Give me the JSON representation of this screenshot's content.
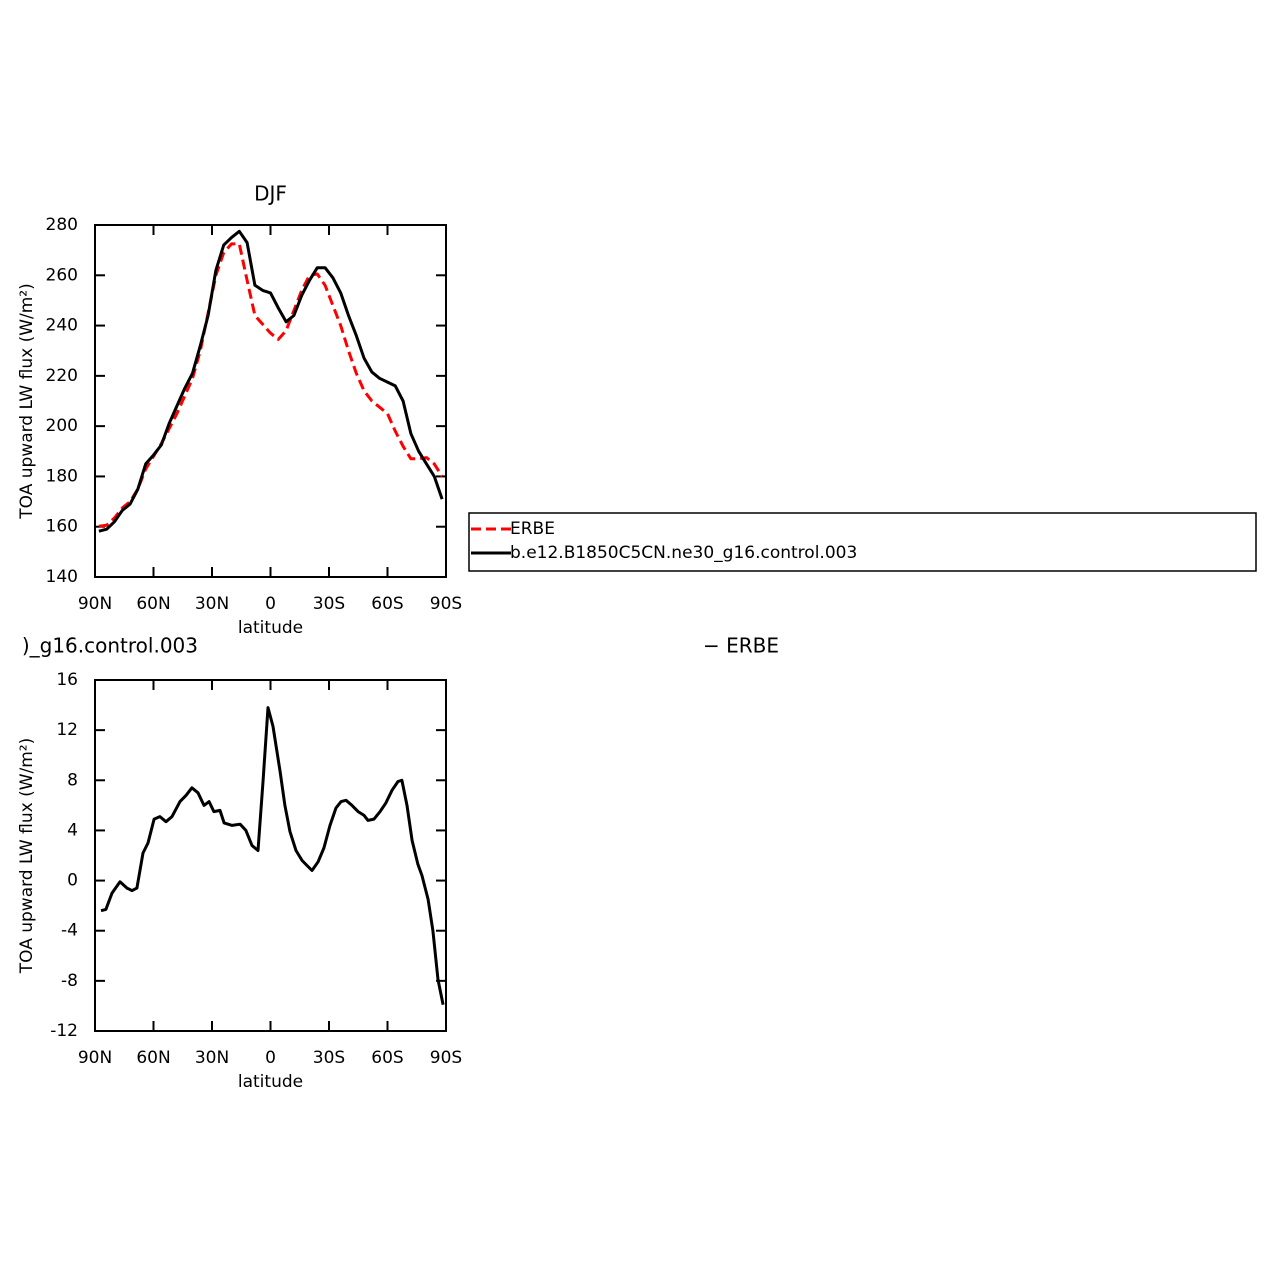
{
  "chart_data": [
    {
      "type": "line",
      "title": "DJF",
      "xlabel": "latitude",
      "ylabel": "TOA upward LW flux (W/m²)",
      "x": [
        88,
        84,
        80,
        76,
        72,
        68,
        64,
        60,
        56,
        52,
        48,
        44,
        40,
        36,
        32,
        28,
        24,
        20,
        16,
        12,
        8,
        4,
        0,
        -4,
        -8,
        -12,
        -16,
        -20,
        -24,
        -28,
        -32,
        -36,
        -40,
        -44,
        -48,
        -52,
        -56,
        -60,
        -64,
        -68,
        -72,
        -76,
        -80,
        -84,
        -88
      ],
      "series": [
        {
          "name": "ERBE",
          "color": "#ff0000",
          "dashed": true,
          "values": [
            160.2,
            160.6,
            163.5,
            167.5,
            170,
            175,
            183,
            188,
            193,
            199,
            205,
            212,
            219,
            230,
            245,
            260,
            269,
            272.5,
            272.5,
            258,
            244,
            240.5,
            237,
            234.5,
            238,
            246,
            254,
            260,
            260.5,
            256,
            248,
            240,
            230,
            221,
            214,
            210,
            207.5,
            205,
            198,
            192,
            187,
            187,
            187.5,
            185,
            180
          ]
        },
        {
          "name": "b.e12.B1850C5CN.ne30_g16.control.003",
          "color": "#000000",
          "dashed": false,
          "values": [
            158.2,
            159,
            162,
            166.5,
            169,
            175,
            185,
            188.5,
            192.5,
            201,
            208,
            215,
            221,
            232,
            244,
            262,
            272,
            275,
            277.5,
            273,
            256,
            254,
            253,
            247,
            241.5,
            244,
            252,
            258,
            263,
            263,
            259,
            253,
            244,
            236,
            227,
            221.5,
            219,
            217.5,
            216,
            210,
            197,
            190,
            185,
            180,
            171
          ]
        }
      ],
      "xlim": [
        90,
        -90
      ],
      "xticks": [
        {
          "value": 90,
          "label": "90N"
        },
        {
          "value": 60,
          "label": "60N"
        },
        {
          "value": 30,
          "label": "30N"
        },
        0,
        {
          "value": -30,
          "label": "30S"
        },
        {
          "value": -60,
          "label": "60S"
        },
        {
          "value": -90,
          "label": "90S"
        }
      ],
      "ylim": [
        140,
        280
      ],
      "yticks": [
        140,
        160,
        180,
        200,
        220,
        240,
        260,
        280
      ],
      "legend": true
    },
    {
      "type": "line",
      "title": ")_g16.control.003",
      "title_right": "− ERBE",
      "xlabel": "latitude",
      "ylabel": "TOA upward LW flux (W/m²)",
      "x": [
        86.9,
        84.4,
        81.3,
        77.2,
        73.6,
        71.0,
        68.5,
        65.4,
        62.8,
        59.7,
        56.7,
        53.6,
        50.5,
        46.4,
        43.3,
        40.3,
        37.2,
        34.1,
        31.5,
        29.0,
        25.9,
        23.8,
        19.7,
        15.6,
        12.6,
        9.5,
        6.4,
        3.8,
        1.3,
        -1.3,
        -4.9,
        -7.4,
        -10.0,
        -13.1,
        -16.2,
        -18.7,
        -21.3,
        -24.4,
        -27.4,
        -30.5,
        -33.6,
        -36.2,
        -38.7,
        -41.8,
        -44.9,
        -48.0,
        -50.0,
        -53.1,
        -56.2,
        -59.2,
        -62.3,
        -65.4,
        -67.4,
        -70.0,
        -72.6,
        -75.6,
        -77.7,
        -80.8,
        -83.3,
        -85.9,
        -88.5
      ],
      "series": [
        {
          "color": "#000000",
          "dashed": false,
          "values": [
            -2.4,
            -2.3,
            -1,
            -0.1,
            -0.6,
            -0.8,
            -0.6,
            2.2,
            3.0,
            4.9,
            5.1,
            4.7,
            5.1,
            6.3,
            6.8,
            7.4,
            7.0,
            6.0,
            6.3,
            5.5,
            5.6,
            4.6,
            4.4,
            4.5,
            4.0,
            2.8,
            2.4,
            8.0,
            13.8,
            12.3,
            8.7,
            6.0,
            3.9,
            2.4,
            1.6,
            1.2,
            0.8,
            1.5,
            2.6,
            4.4,
            5.8,
            6.3,
            6.4,
            6.0,
            5.5,
            5.2,
            4.8,
            4.9,
            5.5,
            6.2,
            7.2,
            7.9,
            8.0,
            6.0,
            3.2,
            1.3,
            0.4,
            -1.5,
            -4,
            -7.9,
            -9.9
          ]
        }
      ],
      "xlim": [
        90,
        -90
      ],
      "xticks": [
        {
          "value": 90,
          "label": "90N"
        },
        {
          "value": 60,
          "label": "60N"
        },
        {
          "value": 30,
          "label": "30N"
        },
        0,
        {
          "value": -30,
          "label": "30S"
        },
        {
          "value": -60,
          "label": "60S"
        },
        {
          "value": -90,
          "label": "90S"
        }
      ],
      "ylim": [
        -12,
        16
      ],
      "yticks": [
        -12,
        -8,
        -4,
        0,
        4,
        8,
        12,
        16
      ],
      "legend": false
    }
  ]
}
